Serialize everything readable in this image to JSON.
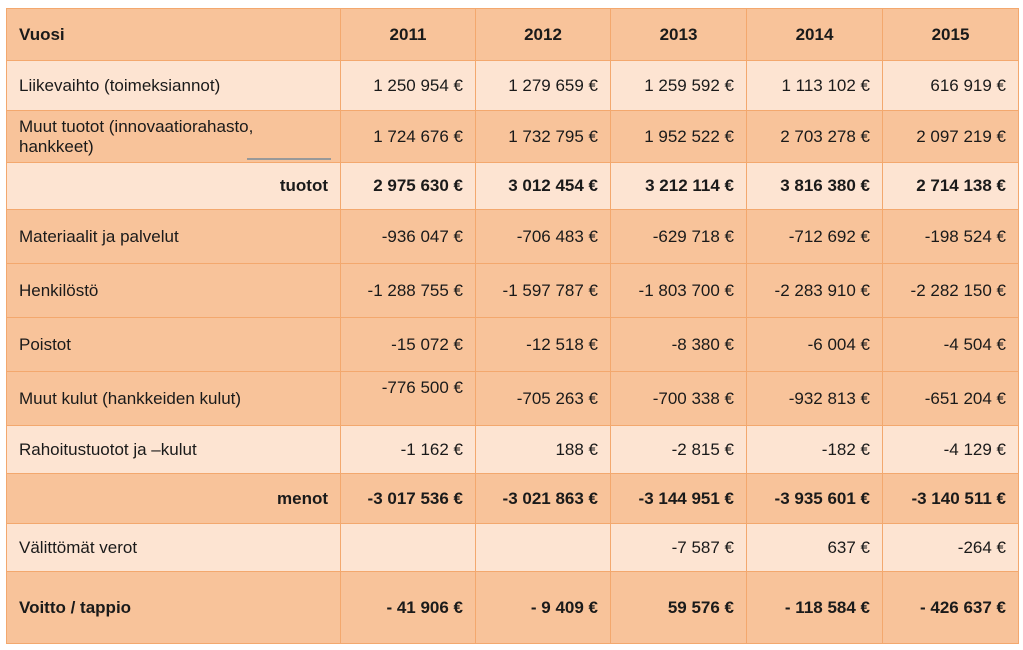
{
  "table": {
    "header": {
      "label": "Vuosi",
      "years": [
        "2011",
        "2012",
        "2013",
        "2014",
        "2015"
      ]
    },
    "rows": [
      {
        "label": "Liikevaihto (toimeksiannot)",
        "values": [
          "1 250 954 €",
          "1 279 659 €",
          "1 259 592 €",
          "1 113 102 €",
          "616 919 €"
        ]
      },
      {
        "label": "Muut tuotot (innovaatiorahasto, hankkeet)",
        "values": [
          "1 724 676 €",
          "1 732 795 €",
          "1 952 522 €",
          "2 703 278 €",
          "2 097 219 €"
        ]
      },
      {
        "label": "tuotot",
        "values": [
          "2 975 630 €",
          "3 012 454 €",
          "3 212 114 €",
          "3 816 380 €",
          "2 714 138 €"
        ]
      },
      {
        "label": "Materiaalit ja palvelut",
        "values": [
          "-936 047 €",
          "-706 483 €",
          "-629 718 €",
          "-712 692 €",
          "-198 524 €"
        ]
      },
      {
        "label": "Henkilöstö",
        "values": [
          "-1 288 755 €",
          "-1 597 787 €",
          "-1 803 700 €",
          "-2 283 910 €",
          "-2 282 150 €"
        ]
      },
      {
        "label": "Poistot",
        "values": [
          "-15 072 €",
          "-12 518 €",
          "-8 380 €",
          "-6 004 €",
          "-4 504 €"
        ]
      },
      {
        "label": "Muut kulut (hankkeiden kulut)",
        "values": [
          "-776 500 €",
          "-705 263 €",
          "-700 338 €",
          "-932 813 €",
          "-651 204 €"
        ]
      },
      {
        "label": "Rahoitustuotot ja –kulut",
        "values": [
          "-1 162 €",
          "188 €",
          "-2 815 €",
          "-182 €",
          "-4 129 €"
        ]
      },
      {
        "label": "menot",
        "values": [
          "-3 017 536 €",
          "-3 021 863 €",
          "-3 144 951 €",
          "-3 935 601 €",
          "-3 140 511 €"
        ]
      },
      {
        "label": "Välittömät verot",
        "values": [
          "",
          "",
          "-7 587 €",
          "637 €",
          "-264 €"
        ]
      },
      {
        "label": "Voitto / tappio",
        "values": [
          "- 41 906 €",
          "- 9 409 €",
          "59 576 €",
          "- 118 584 €",
          "- 426 637 €"
        ]
      }
    ]
  }
}
